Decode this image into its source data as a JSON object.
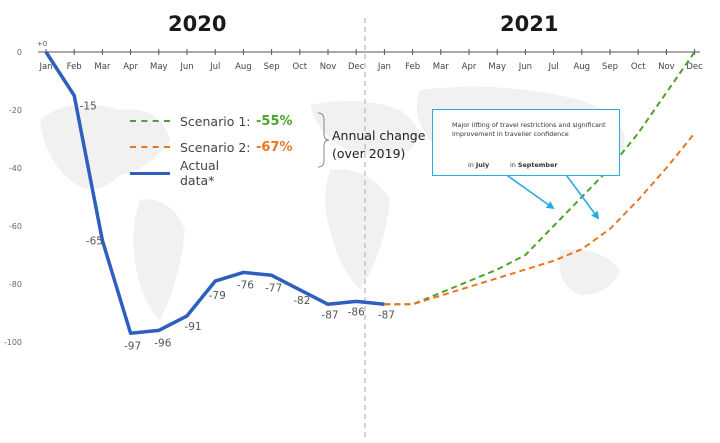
{
  "years": [
    "2020",
    "2021"
  ],
  "legend": {
    "items": [
      {
        "label": "Scenario 1:",
        "value": "-55%",
        "color": "#4da32e",
        "dash": true
      },
      {
        "label": "Scenario 2:",
        "value": "-67%",
        "color": "#e87722",
        "dash": true
      },
      {
        "label": "Actual data*",
        "value": "",
        "color": "#2e5fbf",
        "dash": false
      }
    ],
    "annual_change_line1": "Annual change",
    "annual_change_line2": "(over 2019)"
  },
  "note": {
    "text": "Major lifting of travel restrictions and significant improvement in traveller confidence",
    "in_july_prefix": "in",
    "in_july_month": "July",
    "in_september_prefix": "in",
    "in_september_month": "September",
    "color": "#29abe2"
  },
  "chart_data": {
    "type": "line",
    "x_categories": [
      "Jan",
      "Feb",
      "Mar",
      "Apr",
      "May",
      "Jun",
      "Jul",
      "Aug",
      "Sep",
      "Oct",
      "Nov",
      "Dec",
      "Jan",
      "Feb",
      "Mar",
      "Apr",
      "May",
      "Jun",
      "Jul",
      "Aug",
      "Sep",
      "Oct",
      "Nov",
      "Dec"
    ],
    "y_ticks": [
      0,
      -20,
      -40,
      -60,
      -80,
      -100
    ],
    "ylim": [
      -100,
      0
    ],
    "actual": {
      "name": "Actual data*",
      "values": [
        0,
        -15,
        -65,
        -97,
        -96,
        -91,
        -79,
        -76,
        -77,
        -82,
        -87,
        -86,
        -87
      ],
      "labels": [
        "+0",
        "-15",
        "-65",
        "-97",
        "-96",
        "-91",
        "-79",
        "-76",
        "-77",
        "-82",
        "-87",
        "-86",
        "-87"
      ]
    },
    "series": [
      {
        "name": "Scenario 1",
        "values": [
          null,
          null,
          null,
          null,
          null,
          null,
          null,
          null,
          null,
          null,
          null,
          null,
          -87,
          -87,
          -83,
          -79,
          -75,
          -70,
          -60,
          -50,
          -40,
          -28,
          -14,
          0
        ]
      },
      {
        "name": "Scenario 2",
        "values": [
          null,
          null,
          null,
          null,
          null,
          null,
          null,
          null,
          null,
          null,
          null,
          null,
          -87,
          -87,
          -84,
          -81,
          -78,
          -75,
          -72,
          -68,
          -61,
          -51,
          -40,
          -28
        ]
      }
    ],
    "grid": false
  }
}
